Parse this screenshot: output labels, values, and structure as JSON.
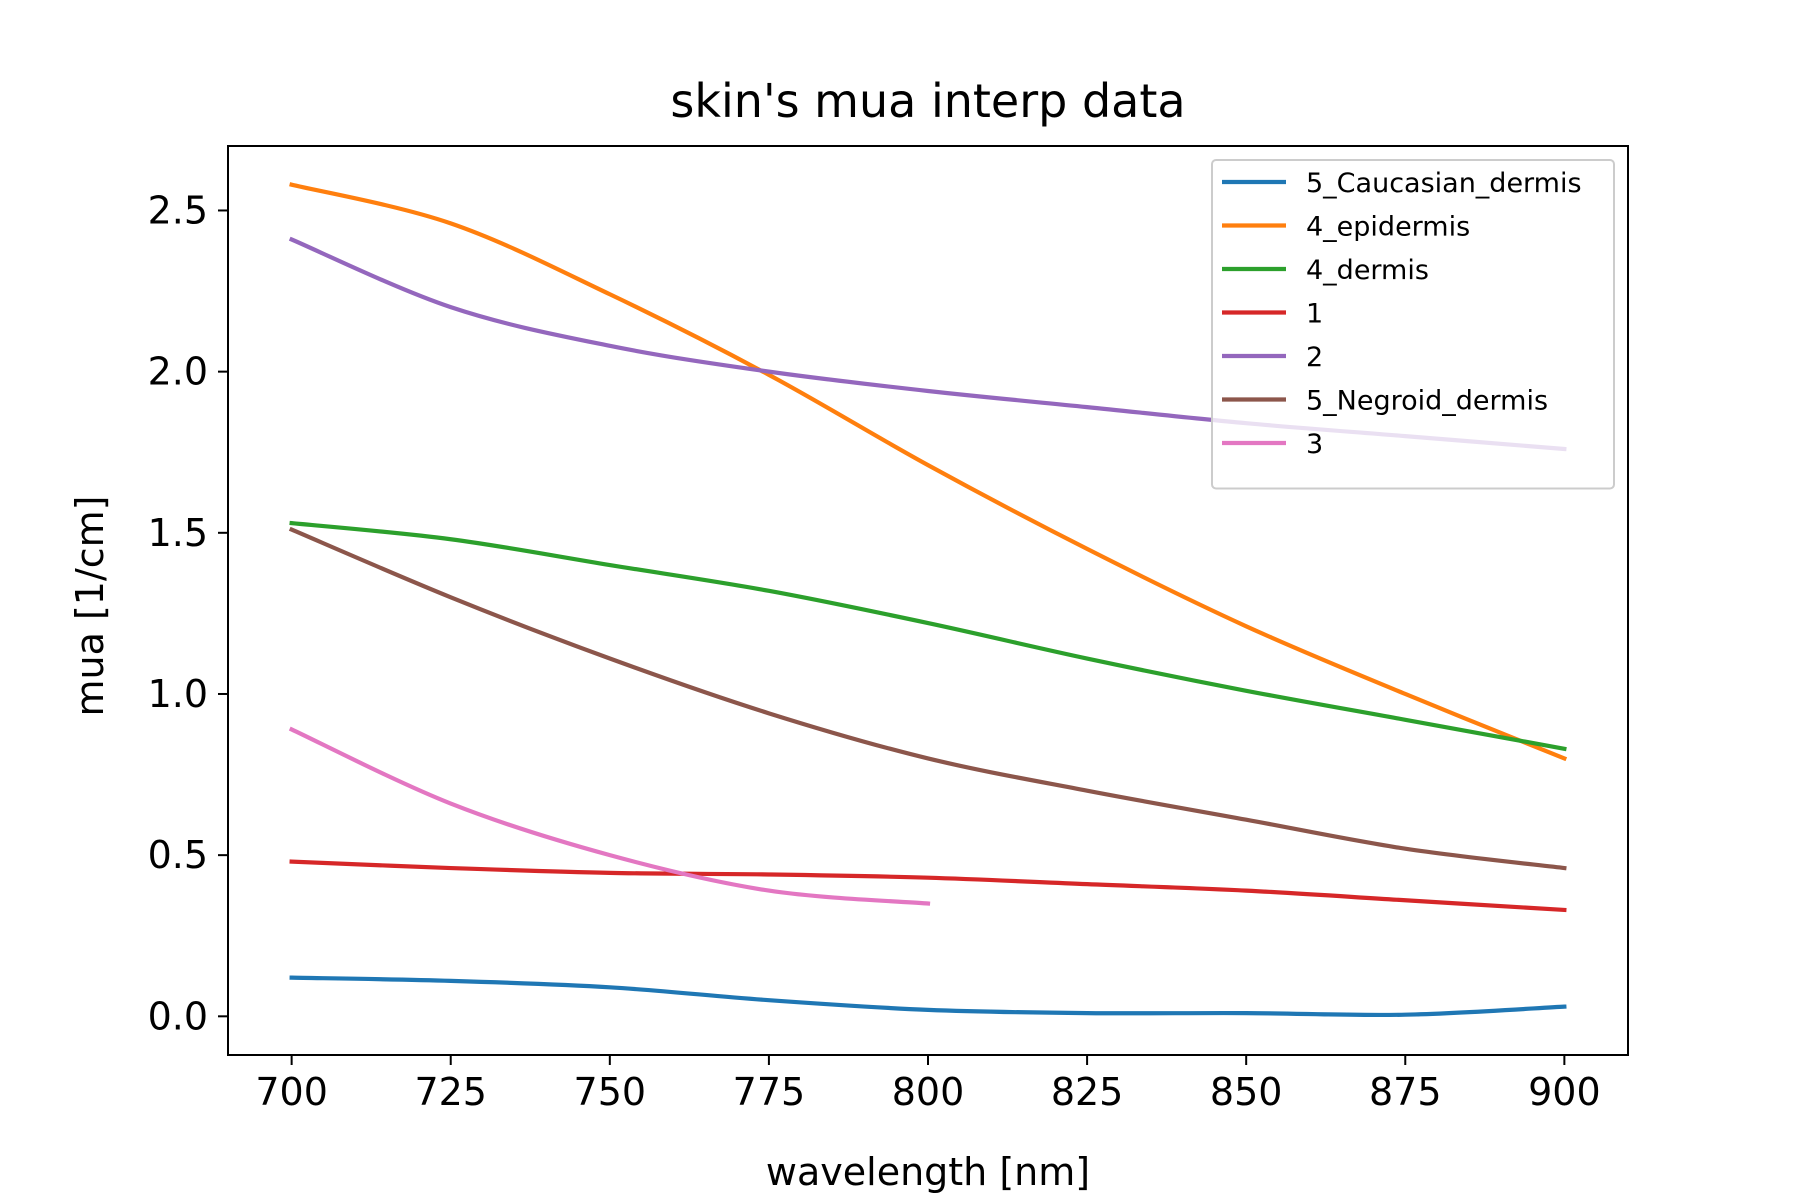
{
  "chart_data": {
    "type": "line",
    "title": "skin's mua interp data",
    "xlabel": "wavelength [nm]",
    "ylabel": "mua [1/cm]",
    "xlim": [
      690,
      910
    ],
    "ylim": [
      -0.12,
      2.7
    ],
    "xticks": [
      700,
      725,
      750,
      775,
      800,
      825,
      850,
      875,
      900
    ],
    "xtick_labels": [
      "700",
      "725",
      "750",
      "775",
      "800",
      "825",
      "850",
      "875",
      "900"
    ],
    "yticks": [
      0.0,
      0.5,
      1.0,
      1.5,
      2.0,
      2.5
    ],
    "ytick_labels": [
      "0.0",
      "0.5",
      "1.0",
      "1.5",
      "2.0",
      "2.5"
    ],
    "grid": false,
    "legend_position": "top-right",
    "series": [
      {
        "name": "5_Caucasian_dermis",
        "color": "#1f77b4",
        "x": [
          700,
          725,
          750,
          775,
          800,
          825,
          850,
          875,
          900
        ],
        "y": [
          0.12,
          0.11,
          0.09,
          0.05,
          0.02,
          0.01,
          0.01,
          0.005,
          0.03
        ]
      },
      {
        "name": "4_epidermis",
        "color": "#ff7f0e",
        "x": [
          700,
          725,
          750,
          775,
          800,
          825,
          850,
          875,
          900
        ],
        "y": [
          2.58,
          2.46,
          2.24,
          1.99,
          1.71,
          1.45,
          1.21,
          1.0,
          0.8
        ]
      },
      {
        "name": "4_dermis",
        "color": "#2ca02c",
        "x": [
          700,
          725,
          750,
          775,
          800,
          825,
          850,
          875,
          900
        ],
        "y": [
          1.53,
          1.48,
          1.4,
          1.32,
          1.22,
          1.11,
          1.01,
          0.92,
          0.83
        ]
      },
      {
        "name": "1",
        "color": "#d62728",
        "x": [
          700,
          725,
          750,
          775,
          800,
          825,
          850,
          875,
          900
        ],
        "y": [
          0.48,
          0.46,
          0.445,
          0.44,
          0.43,
          0.41,
          0.39,
          0.36,
          0.33
        ]
      },
      {
        "name": "2",
        "color": "#9467bd",
        "x": [
          700,
          725,
          750,
          775,
          800,
          825,
          850,
          875,
          900
        ],
        "y": [
          2.41,
          2.2,
          2.08,
          2.0,
          1.94,
          1.89,
          1.84,
          1.8,
          1.76
        ]
      },
      {
        "name": "5_Negroid_dermis",
        "color": "#8c564b",
        "x": [
          700,
          725,
          750,
          775,
          800,
          825,
          850,
          875,
          900
        ],
        "y": [
          1.51,
          1.3,
          1.11,
          0.94,
          0.8,
          0.7,
          0.61,
          0.52,
          0.46
        ]
      },
      {
        "name": "3",
        "color": "#e377c2",
        "x": [
          700,
          725,
          750,
          775,
          800
        ],
        "y": [
          0.89,
          0.66,
          0.5,
          0.39,
          0.35
        ]
      }
    ]
  }
}
